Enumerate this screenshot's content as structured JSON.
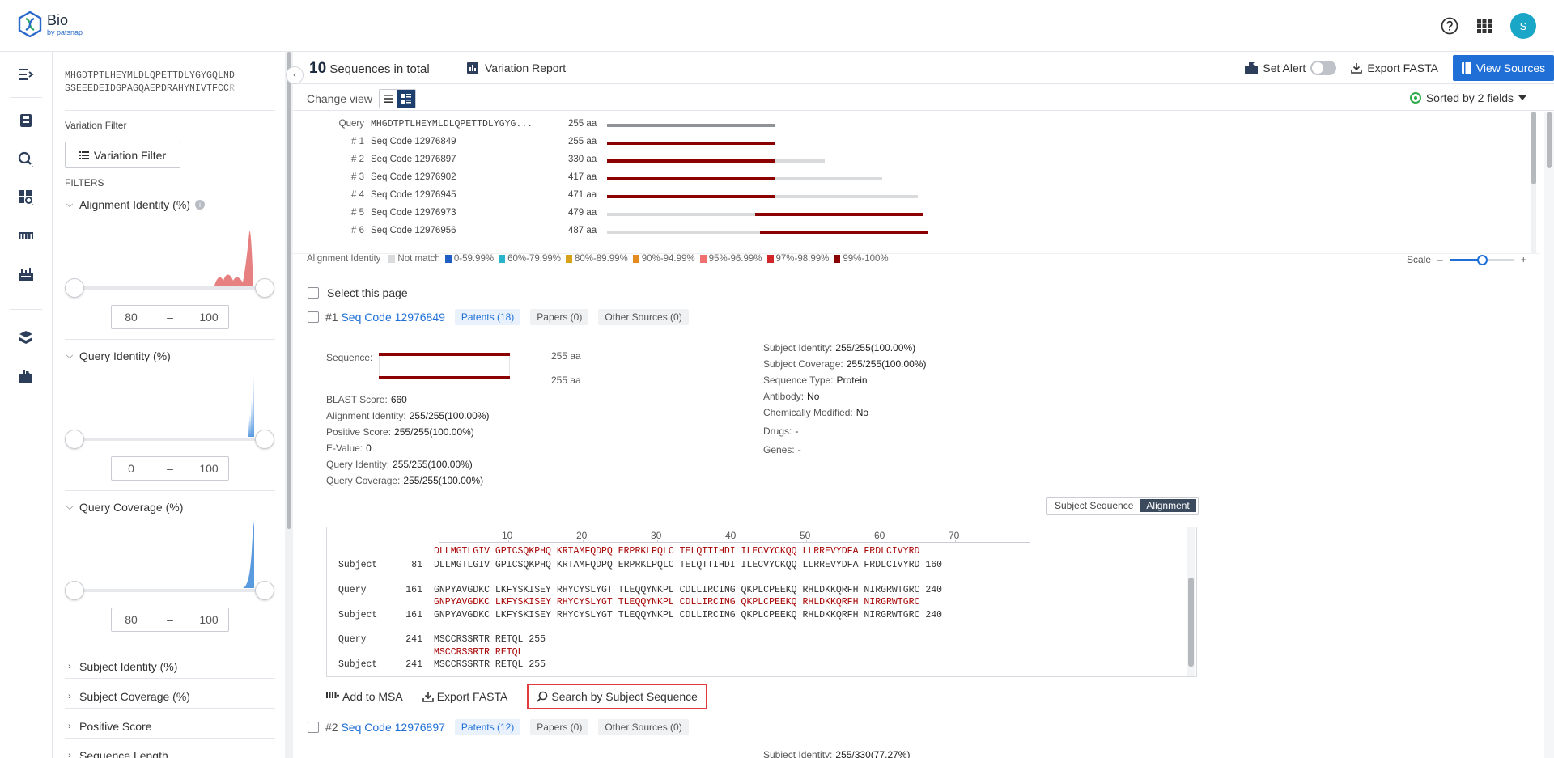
{
  "brand": {
    "name": "Bio",
    "sub": "by patsnap"
  },
  "topbar": {
    "avatar_letter": "S",
    "icons": [
      "help-icon",
      "apps-grid-icon"
    ]
  },
  "rail": {
    "icons": [
      "expand-menu-icon",
      "saved-icon",
      "search-icon",
      "analysis-icon",
      "sequence-icon",
      "workspace-icon",
      "layers-icon",
      "alerts-icon"
    ]
  },
  "filters": {
    "query_seq_line1": "MHGDTPTLHEYMLDLQPETTDLYGYGQLND",
    "query_seq_line2": "SSEEEDEIDGPAGQAEPDRAHYNIVTFCC",
    "query_seq_fade": "R",
    "variation_filter_label": "Variation Filter",
    "variation_filter_button": "Variation Filter",
    "filters_label": "FILTERS",
    "sections": [
      {
        "title": "Alignment Identity (%)",
        "min": "80",
        "max": "100",
        "dash": "–",
        "color": "#e05a5a"
      },
      {
        "title": "Query Identity (%)",
        "min": "0",
        "max": "100",
        "dash": "–",
        "color": "#5a9be0"
      },
      {
        "title": "Query Coverage (%)",
        "min": "80",
        "max": "100",
        "dash": "–",
        "color": "#5a9be0"
      }
    ],
    "collapsed": [
      "Subject Identity (%)",
      "Subject Coverage (%)",
      "Positive Score",
      "Sequence Length"
    ]
  },
  "header": {
    "total_count": "10",
    "total_label": "Sequences in total",
    "variation_report": "Variation Report",
    "set_alert": "Set Alert",
    "export_fasta": "Export FASTA",
    "view_sources": "View Sources",
    "change_view": "Change view",
    "sorted_by": "Sorted by 2 fields"
  },
  "overview": {
    "rows": [
      {
        "id": "Query",
        "name": "MHGDTPTLHEYMLDLQPETTDLYGYG...",
        "len": "255 aa",
        "length": 255,
        "match_start": 0,
        "match_end": 255,
        "query": true
      },
      {
        "id": "# 1",
        "name": "Seq Code 12976849",
        "len": "255 aa",
        "length": 255,
        "match_start": 0,
        "match_end": 255
      },
      {
        "id": "# 2",
        "name": "Seq Code 12976897",
        "len": "330 aa",
        "length": 330,
        "match_start": 0,
        "match_end": 255
      },
      {
        "id": "# 3",
        "name": "Seq Code 12976902",
        "len": "417 aa",
        "length": 417,
        "match_start": 0,
        "match_end": 255
      },
      {
        "id": "# 4",
        "name": "Seq Code 12976945",
        "len": "471 aa",
        "length": 471,
        "match_start": 0,
        "match_end": 255
      },
      {
        "id": "# 5",
        "name": "Seq Code 12976973",
        "len": "479 aa",
        "length": 479,
        "match_start": 224,
        "match_end": 479
      },
      {
        "id": "# 6",
        "name": "Seq Code 12976956",
        "len": "487 aa",
        "length": 487,
        "match_start": 232,
        "match_end": 487
      }
    ],
    "legend_title": "Alignment Identity",
    "legend": [
      {
        "label": "Not match",
        "color": "#d9dadc"
      },
      {
        "label": "0-59.99%",
        "color": "#1f5fc4"
      },
      {
        "label": "60%-79.99%",
        "color": "#27b3c9"
      },
      {
        "label": "80%-89.99%",
        "color": "#d6a21a"
      },
      {
        "label": "90%-94.99%",
        "color": "#e58a1f"
      },
      {
        "label": "95%-96.99%",
        "color": "#f07070"
      },
      {
        "label": "97%-98.99%",
        "color": "#d2252a"
      },
      {
        "label": "99%-100%",
        "color": "#8b0000"
      }
    ],
    "scale_label": "Scale",
    "scale_minus": "–",
    "scale_plus": "+",
    "scale_level": 0.5
  },
  "results": {
    "select_page": "Select this page",
    "items": [
      {
        "num": "#1",
        "code": "Seq Code 12976849",
        "patents": "Patents (18)",
        "papers": "Papers (0)",
        "other": "Other Sources (0)"
      },
      {
        "num": "#2",
        "code": "Seq Code 12976897",
        "patents": "Patents (12)",
        "papers": "Papers (0)",
        "other": "Other Sources (0)"
      }
    ],
    "detail": {
      "sequence_label": "Sequence:",
      "len1": "255 aa",
      "len2": "255 aa",
      "left": [
        {
          "k": "BLAST Score:",
          "v": "660"
        },
        {
          "k": "Alignment Identity:",
          "v": "255/255(100.00%)"
        },
        {
          "k": "Positive Score:",
          "v": "255/255(100.00%)"
        },
        {
          "k": "E-Value:",
          "v": "0"
        },
        {
          "k": "Query Identity:",
          "v": "255/255(100.00%)"
        },
        {
          "k": "Query Coverage:",
          "v": "255/255(100.00%)"
        }
      ],
      "right": [
        {
          "k": "Subject Identity:",
          "v": "255/255(100.00%)"
        },
        {
          "k": "Subject Coverage:",
          "v": "255/255(100.00%)"
        },
        {
          "k": "Sequence Type:",
          "v": "Protein"
        },
        {
          "k": "Antibody:",
          "v": "No"
        },
        {
          "k": "Chemically Modified:",
          "v": "No"
        },
        {
          "k": "Drugs:",
          "v": "-"
        },
        {
          "k": "Genes:",
          "v": "-"
        }
      ],
      "next_subject_identity": {
        "k": "Subject Identity:",
        "v": "255/330(77.27%)"
      }
    },
    "view_toggle": {
      "subject": "Subject Sequence",
      "alignment": "Alignment"
    },
    "ruler": [
      "10",
      "20",
      "30",
      "40",
      "50",
      "60",
      "70"
    ],
    "alignment": {
      "top_partial": "DLLMGTLGIV GPICSQKPHQ KRTAMFQDPQ ERPRKLPQLC TELQTTIHDI ILECVYCKQQ LLRREVYDFA FRDLCIVYRD",
      "lines": [
        {
          "label": "Subject",
          "pos": "81",
          "seq": "DLLMGTLGIV GPICSQKPHQ KRTAMFQDPQ ERPRKLPQLC TELQTTIHDI ILECVYCKQQ LLRREVYDFA FRDLCIVYRD",
          "end": "160"
        },
        {
          "label": "Query",
          "pos": "161",
          "seq": "GNPYAVGDKC LKFYSKISEY RHYCYSLYGT TLEQQYNKPL CDLLIRCING QKPLCPEEKQ RHLDKKQRFH NIRGRWTGRC",
          "end": "240"
        },
        {
          "label": "",
          "pos": "",
          "seq": "GNPYAVGDKC LKFYSKISEY RHYCYSLYGT TLEQQYNKPL CDLLIRCING QKPLCPEEKQ RHLDKKQRFH NIRGRWTGRC",
          "end": "",
          "red": true
        },
        {
          "label": "Subject",
          "pos": "161",
          "seq": "GNPYAVGDKC LKFYSKISEY RHYCYSLYGT TLEQQYNKPL CDLLIRCING QKPLCPEEKQ RHLDKKQRFH NIRGRWTGRC",
          "end": "240"
        },
        {
          "label": "Query",
          "pos": "241",
          "seq": "MSCCRSSRTR RETQL",
          "end": "255"
        },
        {
          "label": "",
          "pos": "",
          "seq": "MSCCRSSRTR RETQL",
          "end": "",
          "red": true
        },
        {
          "label": "Subject",
          "pos": "241",
          "seq": "MSCCRSSRTR RETQL",
          "end": "255"
        }
      ]
    },
    "actions": {
      "add_msa": "Add to MSA",
      "export_fasta": "Export FASTA",
      "search_subject": "Search by Subject Sequence"
    }
  }
}
